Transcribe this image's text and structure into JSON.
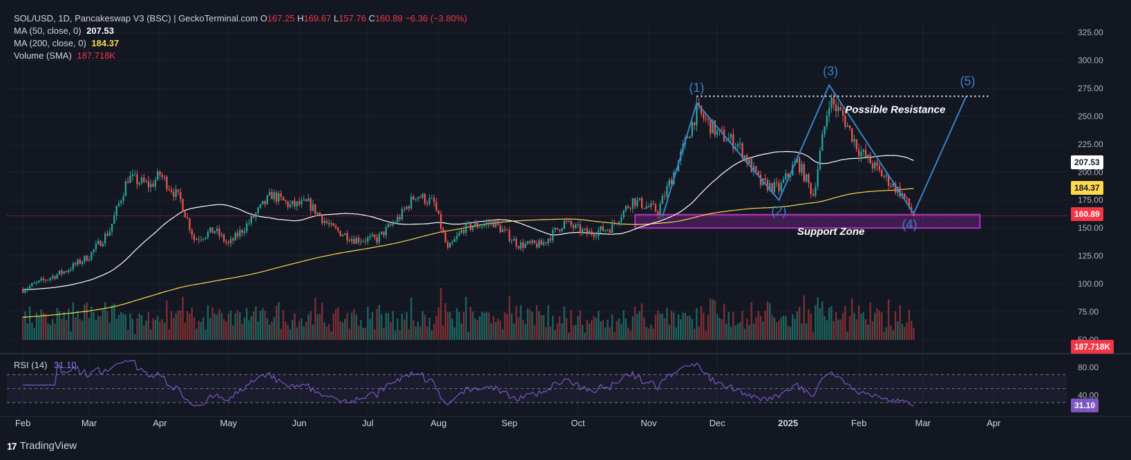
{
  "header": {
    "title": "SOL/USD, 1D, Pancakeswap V3 (BSC) | GeckoTerminal.com",
    "ohlc": [
      {
        "label": "O",
        "value": "167.25"
      },
      {
        "label": "H",
        "value": "169.67"
      },
      {
        "label": "L",
        "value": "157.76"
      },
      {
        "label": "C",
        "value": "160.89"
      }
    ],
    "change": "−6.36 (−3.80%)",
    "ma50_label": "MA (50, close, 0)",
    "ma50_value": "207.53",
    "ma200_label": "MA (200, close, 0)",
    "ma200_value": "184.37",
    "volume_label": "Volume (SMA)",
    "volume_value": "187.718K"
  },
  "rsi": {
    "label": "RSI (14)",
    "value": "31.10",
    "levels": [
      "80.00",
      "40.00"
    ]
  },
  "price_tags": {
    "ma50": "207.53",
    "ma200": "184.37",
    "last": "160.89",
    "volume": "187.718K"
  },
  "brand": {
    "name": "TradingView",
    "logo": "17"
  },
  "colors": {
    "background": "#131722",
    "up": "#26a69a",
    "down": "#ef5350",
    "ma50": "#ffffff",
    "ma200": "#ffd84d",
    "wave": "#3b82c4",
    "zone": "#b030c8",
    "rsi": "#7e57c2"
  },
  "chart_data": {
    "type": "candlestick",
    "symbol": "SOL/USD",
    "interval": "1D",
    "yticks": [
      50,
      75,
      100,
      125,
      150,
      175,
      200,
      225,
      250,
      275,
      300,
      325
    ],
    "ylim": [
      40,
      335
    ],
    "xticks": [
      "Feb",
      "Mar",
      "Apr",
      "May",
      "Jun",
      "Jul",
      "Aug",
      "Sep",
      "Oct",
      "Nov",
      "Dec",
      "2025",
      "Feb",
      "Mar",
      "Apr"
    ],
    "price_path": [
      [
        "2024-02-01",
        95
      ],
      [
        "2024-02-20",
        112
      ],
      [
        "2024-03-01",
        125
      ],
      [
        "2024-03-10",
        148
      ],
      [
        "2024-03-18",
        195
      ],
      [
        "2024-03-28",
        188
      ],
      [
        "2024-04-01",
        198
      ],
      [
        "2024-04-10",
        175
      ],
      [
        "2024-04-16",
        140
      ],
      [
        "2024-04-25",
        148
      ],
      [
        "2024-05-01",
        135
      ],
      [
        "2024-05-10",
        155
      ],
      [
        "2024-05-20",
        180
      ],
      [
        "2024-05-28",
        170
      ],
      [
        "2024-06-05",
        172
      ],
      [
        "2024-06-15",
        150
      ],
      [
        "2024-06-25",
        140
      ],
      [
        "2024-07-05",
        140
      ],
      [
        "2024-07-15",
        160
      ],
      [
        "2024-07-22",
        180
      ],
      [
        "2024-07-30",
        172
      ],
      [
        "2024-08-05",
        130
      ],
      [
        "2024-08-12",
        150
      ],
      [
        "2024-08-25",
        155
      ],
      [
        "2024-09-05",
        135
      ],
      [
        "2024-09-15",
        135
      ],
      [
        "2024-09-25",
        155
      ],
      [
        "2024-10-05",
        145
      ],
      [
        "2024-10-15",
        150
      ],
      [
        "2024-10-25",
        175
      ],
      [
        "2024-11-05",
        165
      ],
      [
        "2024-11-15",
        215
      ],
      [
        "2024-11-22",
        255
      ],
      [
        "2024-12-01",
        235
      ],
      [
        "2024-12-10",
        225
      ],
      [
        "2024-12-20",
        190
      ],
      [
        "2024-12-28",
        185
      ],
      [
        "2025-01-05",
        210
      ],
      [
        "2025-01-12",
        180
      ],
      [
        "2025-01-19",
        265
      ],
      [
        "2025-01-25",
        250
      ],
      [
        "2025-02-01",
        220
      ],
      [
        "2025-02-10",
        200
      ],
      [
        "2025-02-20",
        180
      ],
      [
        "2025-02-25",
        160.89
      ]
    ],
    "ma50_last": 207.53,
    "ma200_last": 184.37,
    "annotations": {
      "waves": [
        {
          "label": "(1)",
          "date": "2024-11-22",
          "price": 262
        },
        {
          "label": "(2)",
          "date": "2024-12-28",
          "price": 175
        },
        {
          "label": "(3)",
          "date": "2025-01-19",
          "price": 278
        },
        {
          "label": "(4)",
          "date": "2025-02-25",
          "price": 163
        },
        {
          "label": "(5)",
          "date": "2025-03-20",
          "price": 268
        }
      ],
      "resistance_label": "Possible Resistance",
      "resistance_price": 268,
      "support_label": "Support Zone",
      "support_range": [
        150,
        162
      ]
    }
  }
}
